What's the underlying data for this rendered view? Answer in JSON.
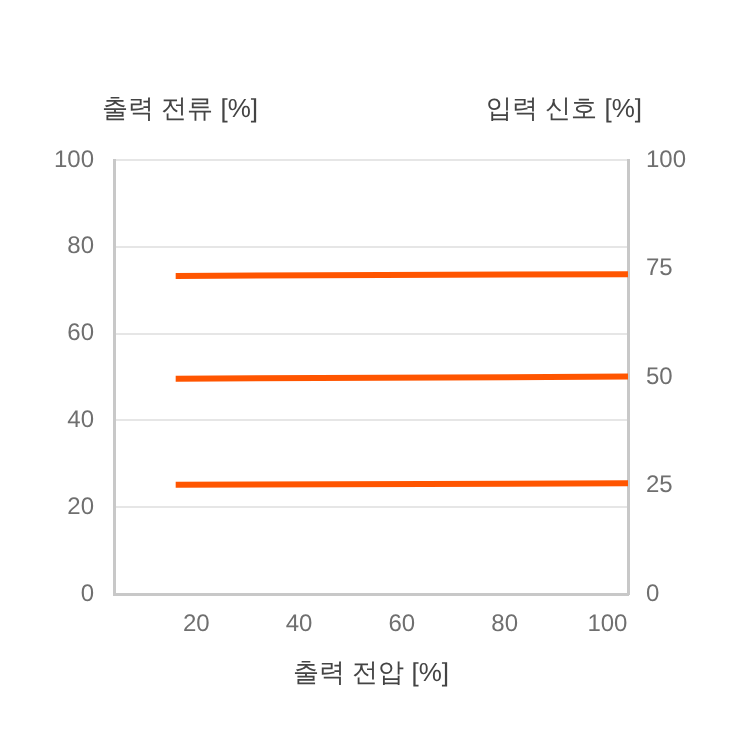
{
  "chart_data": {
    "type": "line",
    "xlabel": "출력 전압 [%]",
    "ylabel": "출력 전류 [%]",
    "y2label": "입력 신호 [%]",
    "xlim": [
      4,
      104
    ],
    "xticks": [
      20,
      40,
      60,
      80,
      100
    ],
    "ylim": [
      0,
      100
    ],
    "yticks": [
      0,
      20,
      40,
      60,
      80,
      100
    ],
    "y2lim": [
      0,
      100
    ],
    "y2ticks": [
      0,
      25,
      50,
      75,
      100
    ],
    "grid": "y",
    "legend": false,
    "marker": "none",
    "line_style": "solid",
    "x": [
      16,
      104
    ],
    "series": [
      {
        "color": "#ff5500",
        "values": [
          73.3,
          73.7
        ]
      },
      {
        "color": "#ff5500",
        "values": [
          49.6,
          50.1
        ]
      },
      {
        "color": "#ff5500",
        "values": [
          25.2,
          25.5
        ]
      }
    ]
  }
}
